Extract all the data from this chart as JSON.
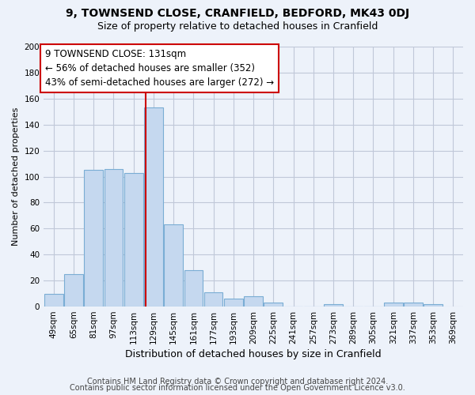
{
  "title": "9, TOWNSEND CLOSE, CRANFIELD, BEDFORD, MK43 0DJ",
  "subtitle": "Size of property relative to detached houses in Cranfield",
  "xlabel": "Distribution of detached houses by size in Cranfield",
  "ylabel": "Number of detached properties",
  "bins": [
    49,
    65,
    81,
    97,
    113,
    129,
    145,
    161,
    177,
    193,
    209,
    225,
    241,
    257,
    273,
    289,
    305,
    321,
    337,
    353,
    369
  ],
  "bin_labels": [
    "49sqm",
    "65sqm",
    "81sqm",
    "97sqm",
    "113sqm",
    "129sqm",
    "145sqm",
    "161sqm",
    "177sqm",
    "193sqm",
    "209sqm",
    "225sqm",
    "241sqm",
    "257sqm",
    "273sqm",
    "289sqm",
    "305sqm",
    "321sqm",
    "337sqm",
    "353sqm",
    "369sqm"
  ],
  "bar_heights": [
    10,
    25,
    105,
    106,
    103,
    153,
    63,
    28,
    11,
    6,
    8,
    3,
    0,
    0,
    2,
    0,
    0,
    3,
    3,
    2,
    0
  ],
  "bar_color": "#c5d8ef",
  "bar_edge_color": "#7aadd4",
  "vline_x": 131,
  "vline_color": "#cc0000",
  "ylim": [
    0,
    200
  ],
  "yticks": [
    0,
    20,
    40,
    60,
    80,
    100,
    120,
    140,
    160,
    180,
    200
  ],
  "annotation_text": "9 TOWNSEND CLOSE: 131sqm\n← 56% of detached houses are smaller (352)\n43% of semi-detached houses are larger (272) →",
  "annotation_box_facecolor": "#ffffff",
  "annotation_box_edgecolor": "#cc0000",
  "footer1": "Contains HM Land Registry data © Crown copyright and database right 2024.",
  "footer2": "Contains public sector information licensed under the Open Government Licence v3.0.",
  "bg_color": "#edf2fa",
  "grid_color": "#c0c8d8",
  "title_fontsize": 10,
  "subtitle_fontsize": 9,
  "xlabel_fontsize": 9,
  "ylabel_fontsize": 8,
  "tick_fontsize": 7.5,
  "annotation_fontsize": 8.5,
  "footer_fontsize": 7
}
